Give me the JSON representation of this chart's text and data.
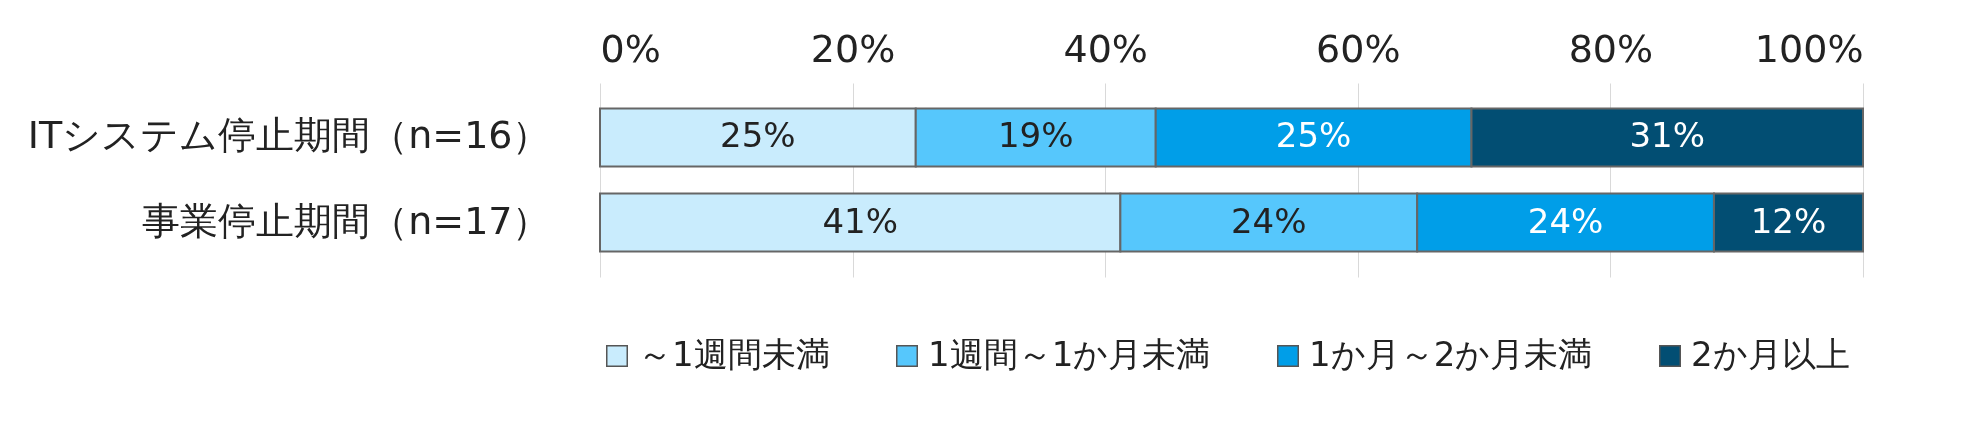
{
  "chart_data": {
    "type": "bar",
    "orientation": "horizontal",
    "stacked": true,
    "grid": "x",
    "legend": "bottom",
    "categories": [
      "ITシステム停止期間（n=16）",
      "事業停止期間（n=17）"
    ],
    "xlim": [
      0,
      100
    ],
    "xticks": [
      {
        "value": 0,
        "label": "0%"
      },
      {
        "value": 20,
        "label": "20%"
      },
      {
        "value": 40,
        "label": "40%"
      },
      {
        "value": 60,
        "label": "60%"
      },
      {
        "value": 80,
        "label": "80%"
      },
      {
        "value": 100,
        "label": "100%"
      }
    ],
    "series": [
      {
        "name": "～1週間未満",
        "color": "#c9ecfd",
        "values": [
          25,
          41.2
        ],
        "value_labels": [
          "25%",
          "41%"
        ]
      },
      {
        "name": "1週間～1か月未満",
        "color": "#56c7fc",
        "values": [
          19,
          23.5
        ],
        "value_labels": [
          "19%",
          "24%"
        ]
      },
      {
        "name": "1か月～2か月未満",
        "color": "#009ee8",
        "values": [
          25,
          23.5
        ],
        "value_labels": [
          "25%",
          "24%"
        ]
      },
      {
        "name": "2か月以上",
        "color": "#024e73",
        "values": [
          31,
          11.8
        ],
        "value_labels": [
          "31%",
          "12%"
        ]
      }
    ]
  }
}
